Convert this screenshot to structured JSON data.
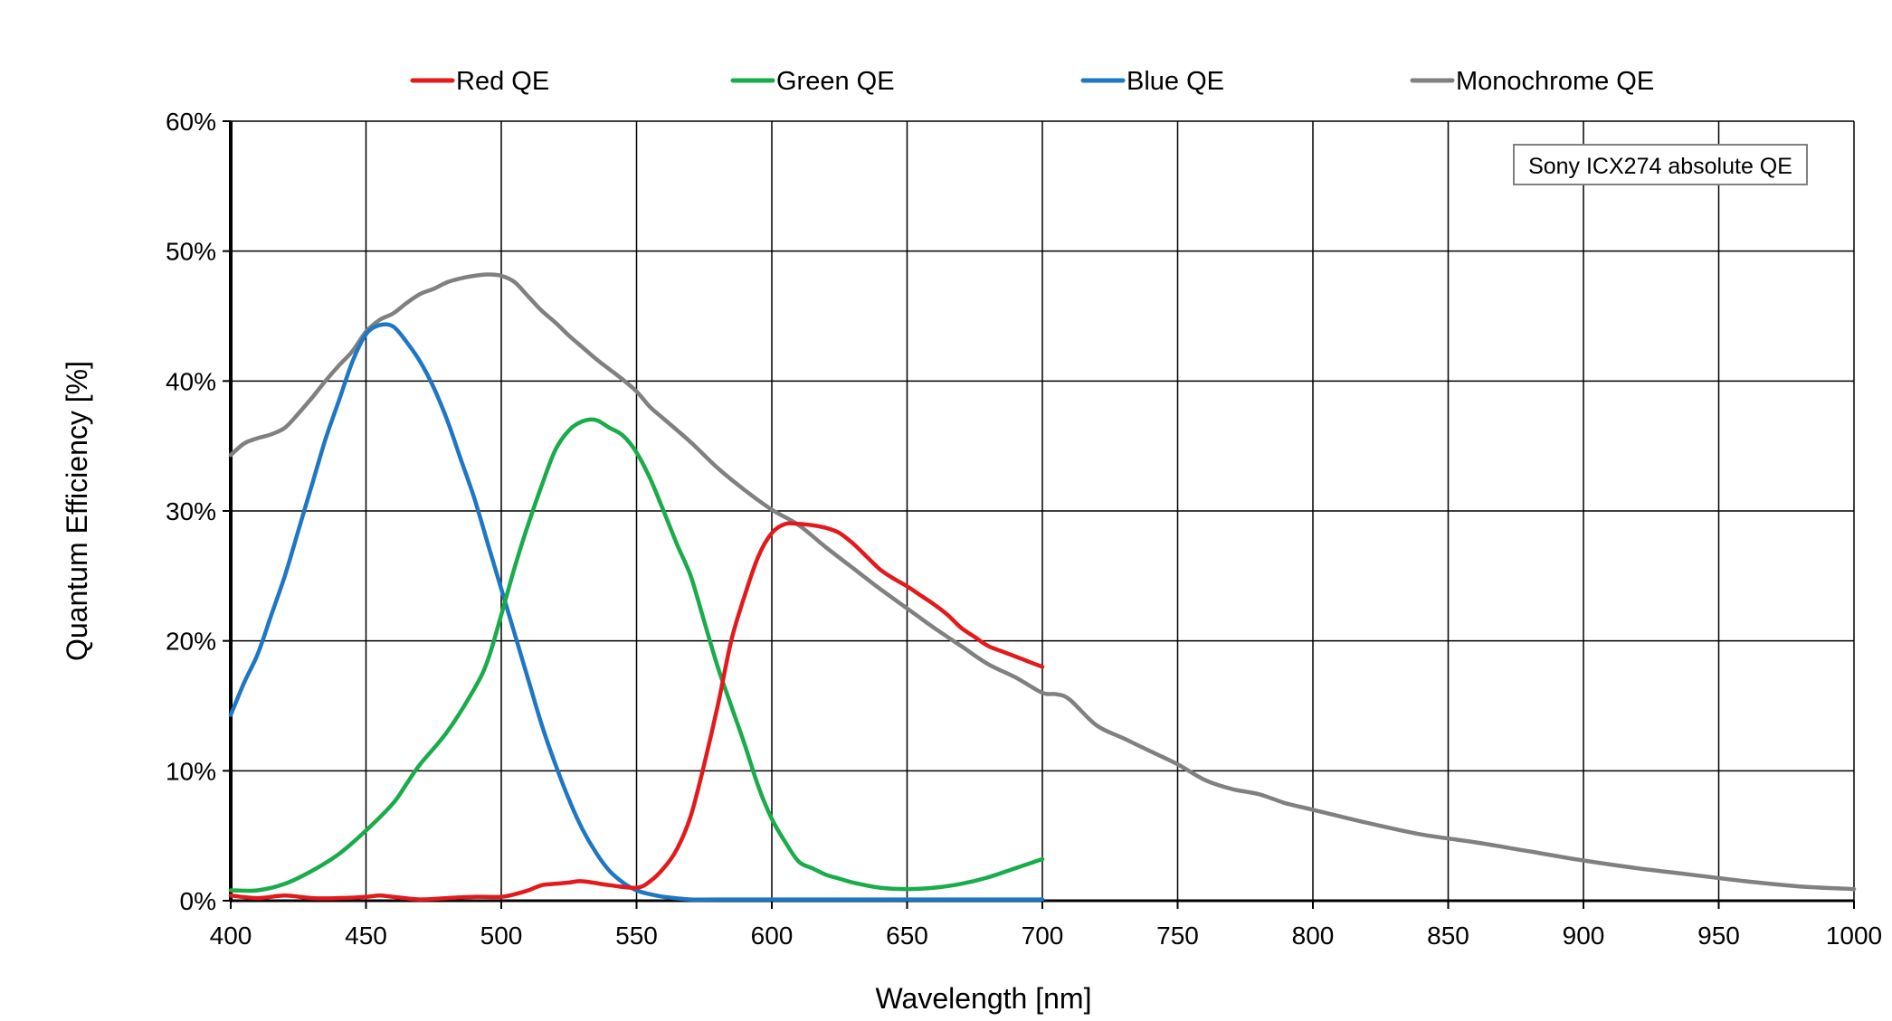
{
  "chart_data": {
    "type": "line",
    "title": "",
    "xlabel": "Wavelength [nm]",
    "ylabel": "Quantum Efficiency [%]",
    "xlim": [
      400,
      1000
    ],
    "ylim": [
      0,
      60
    ],
    "x_ticks": [
      400,
      450,
      500,
      550,
      600,
      650,
      700,
      750,
      800,
      850,
      900,
      950,
      1000
    ],
    "y_ticks": [
      0,
      10,
      20,
      30,
      40,
      50,
      60
    ],
    "y_tick_labels": [
      "0%",
      "10%",
      "20%",
      "30%",
      "40%",
      "50%",
      "60%"
    ],
    "grid": true,
    "legend_position": "top",
    "annotation": "Sony ICX274 absolute QE",
    "series": [
      {
        "name": "Red QE",
        "color": "#e31a1c",
        "x": [
          400,
          410,
          420,
          430,
          440,
          450,
          455,
          460,
          470,
          480,
          490,
          500,
          505,
          510,
          515,
          520,
          525,
          530,
          540,
          550,
          555,
          560,
          565,
          570,
          575,
          580,
          585,
          590,
          595,
          600,
          605,
          610,
          615,
          620,
          625,
          630,
          635,
          640,
          645,
          650,
          655,
          660,
          665,
          670,
          675,
          680,
          685,
          690,
          695,
          700
        ],
        "y": [
          0.4,
          0.2,
          0.4,
          0.2,
          0.2,
          0.3,
          0.4,
          0.3,
          0.1,
          0.2,
          0.3,
          0.3,
          0.5,
          0.8,
          1.2,
          1.3,
          1.4,
          1.5,
          1.2,
          1.0,
          1.5,
          2.5,
          4.0,
          6.5,
          10.5,
          15.0,
          20.0,
          23.5,
          26.5,
          28.3,
          29.0,
          29.0,
          28.9,
          28.7,
          28.3,
          27.5,
          26.5,
          25.5,
          24.8,
          24.2,
          23.5,
          22.8,
          22.0,
          21.0,
          20.3,
          19.6,
          19.2,
          18.8,
          18.4,
          18.0
        ]
      },
      {
        "name": "Green QE",
        "color": "#1aab4b",
        "x": [
          400,
          410,
          420,
          430,
          440,
          450,
          460,
          465,
          470,
          480,
          490,
          495,
          500,
          505,
          510,
          515,
          520,
          525,
          530,
          535,
          540,
          545,
          550,
          555,
          560,
          565,
          570,
          575,
          580,
          585,
          590,
          595,
          600,
          605,
          610,
          615,
          620,
          625,
          630,
          640,
          650,
          660,
          670,
          680,
          690,
          700
        ],
        "y": [
          0.8,
          0.8,
          1.3,
          2.3,
          3.6,
          5.4,
          7.5,
          9.0,
          10.5,
          13.0,
          16.3,
          18.5,
          22.0,
          25.7,
          29.0,
          32.0,
          34.7,
          36.2,
          36.9,
          37.0,
          36.4,
          35.8,
          34.5,
          32.5,
          30.0,
          27.4,
          25.0,
          21.5,
          18.0,
          15.0,
          12.0,
          8.8,
          6.3,
          4.5,
          3.0,
          2.5,
          2.0,
          1.7,
          1.4,
          1.0,
          0.9,
          1.0,
          1.3,
          1.8,
          2.5,
          3.2
        ]
      },
      {
        "name": "Blue QE",
        "color": "#1f77c4",
        "x": [
          400,
          405,
          410,
          415,
          420,
          425,
          430,
          435,
          440,
          445,
          450,
          455,
          460,
          465,
          470,
          475,
          480,
          485,
          490,
          495,
          500,
          505,
          510,
          515,
          520,
          525,
          530,
          535,
          540,
          545,
          550,
          555,
          560,
          570,
          580,
          600,
          650,
          700
        ],
        "y": [
          14.3,
          16.8,
          19.0,
          22.0,
          25.0,
          28.5,
          32.0,
          35.5,
          38.5,
          41.5,
          43.6,
          44.3,
          44.2,
          43.0,
          41.5,
          39.5,
          37.0,
          34.0,
          31.0,
          27.5,
          24.0,
          20.5,
          17.0,
          13.5,
          10.5,
          7.8,
          5.5,
          3.7,
          2.3,
          1.4,
          0.8,
          0.5,
          0.3,
          0.1,
          0.1,
          0.1,
          0.1,
          0.1
        ]
      },
      {
        "name": "Monochrome QE",
        "color": "#808080",
        "x": [
          400,
          405,
          410,
          415,
          420,
          425,
          430,
          435,
          440,
          445,
          450,
          455,
          460,
          465,
          470,
          475,
          480,
          485,
          490,
          495,
          500,
          505,
          510,
          515,
          520,
          525,
          530,
          535,
          540,
          545,
          550,
          555,
          560,
          570,
          580,
          590,
          600,
          610,
          620,
          630,
          640,
          650,
          660,
          670,
          680,
          690,
          700,
          705,
          710,
          720,
          730,
          740,
          750,
          760,
          770,
          780,
          790,
          800,
          820,
          840,
          860,
          880,
          900,
          920,
          940,
          960,
          980,
          1000
        ],
        "y": [
          34.3,
          35.2,
          35.6,
          35.9,
          36.4,
          37.5,
          38.7,
          40.0,
          41.2,
          42.3,
          43.8,
          44.7,
          45.2,
          46.0,
          46.7,
          47.1,
          47.6,
          47.9,
          48.1,
          48.2,
          48.1,
          47.6,
          46.5,
          45.4,
          44.5,
          43.5,
          42.6,
          41.7,
          40.9,
          40.1,
          39.2,
          38.0,
          37.1,
          35.3,
          33.3,
          31.6,
          30.1,
          28.9,
          27.2,
          25.6,
          24.0,
          22.5,
          21.0,
          19.6,
          18.2,
          17.2,
          16.0,
          15.9,
          15.5,
          13.5,
          12.5,
          11.5,
          10.5,
          9.3,
          8.6,
          8.2,
          7.5,
          7.0,
          6.0,
          5.1,
          4.5,
          3.8,
          3.1,
          2.5,
          2.0,
          1.5,
          1.1,
          0.9
        ]
      }
    ]
  }
}
